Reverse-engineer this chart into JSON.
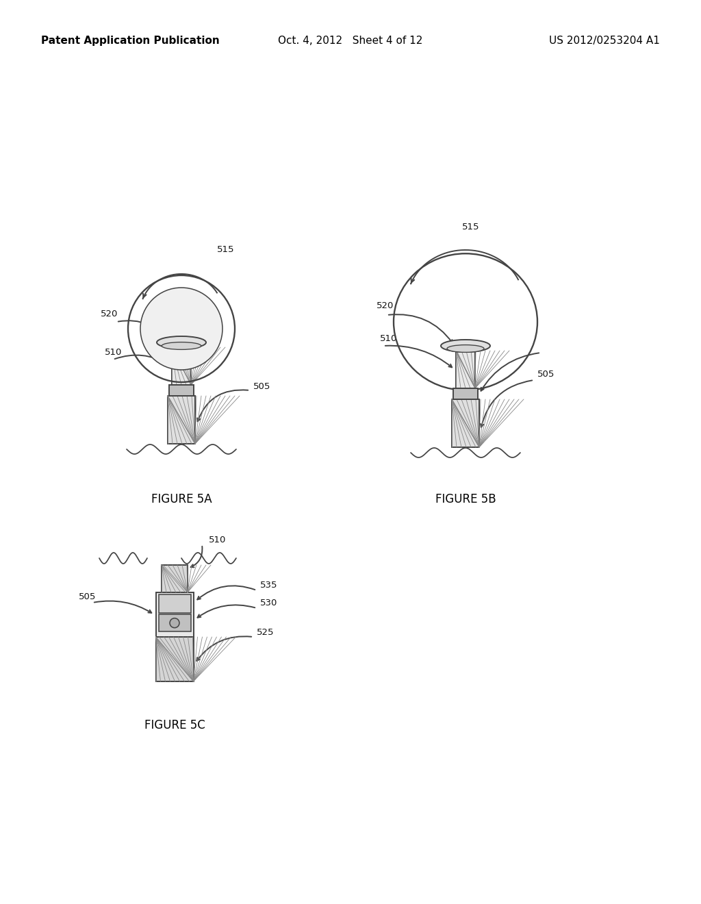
{
  "background_color": "#ffffff",
  "header_left": "Patent Application Publication",
  "header_center": "Oct. 4, 2012   Sheet 4 of 12",
  "header_right": "US 2012/0253204 A1",
  "header_fontsize": 11,
  "fig5a_caption": "FIGURE 5A",
  "fig5b_caption": "FIGURE 5B",
  "fig5c_caption": "FIGURE 5C",
  "line_color": "#444444",
  "label_color": "#111111",
  "label_fontsize": 9.5,
  "caption_fontsize": 12
}
